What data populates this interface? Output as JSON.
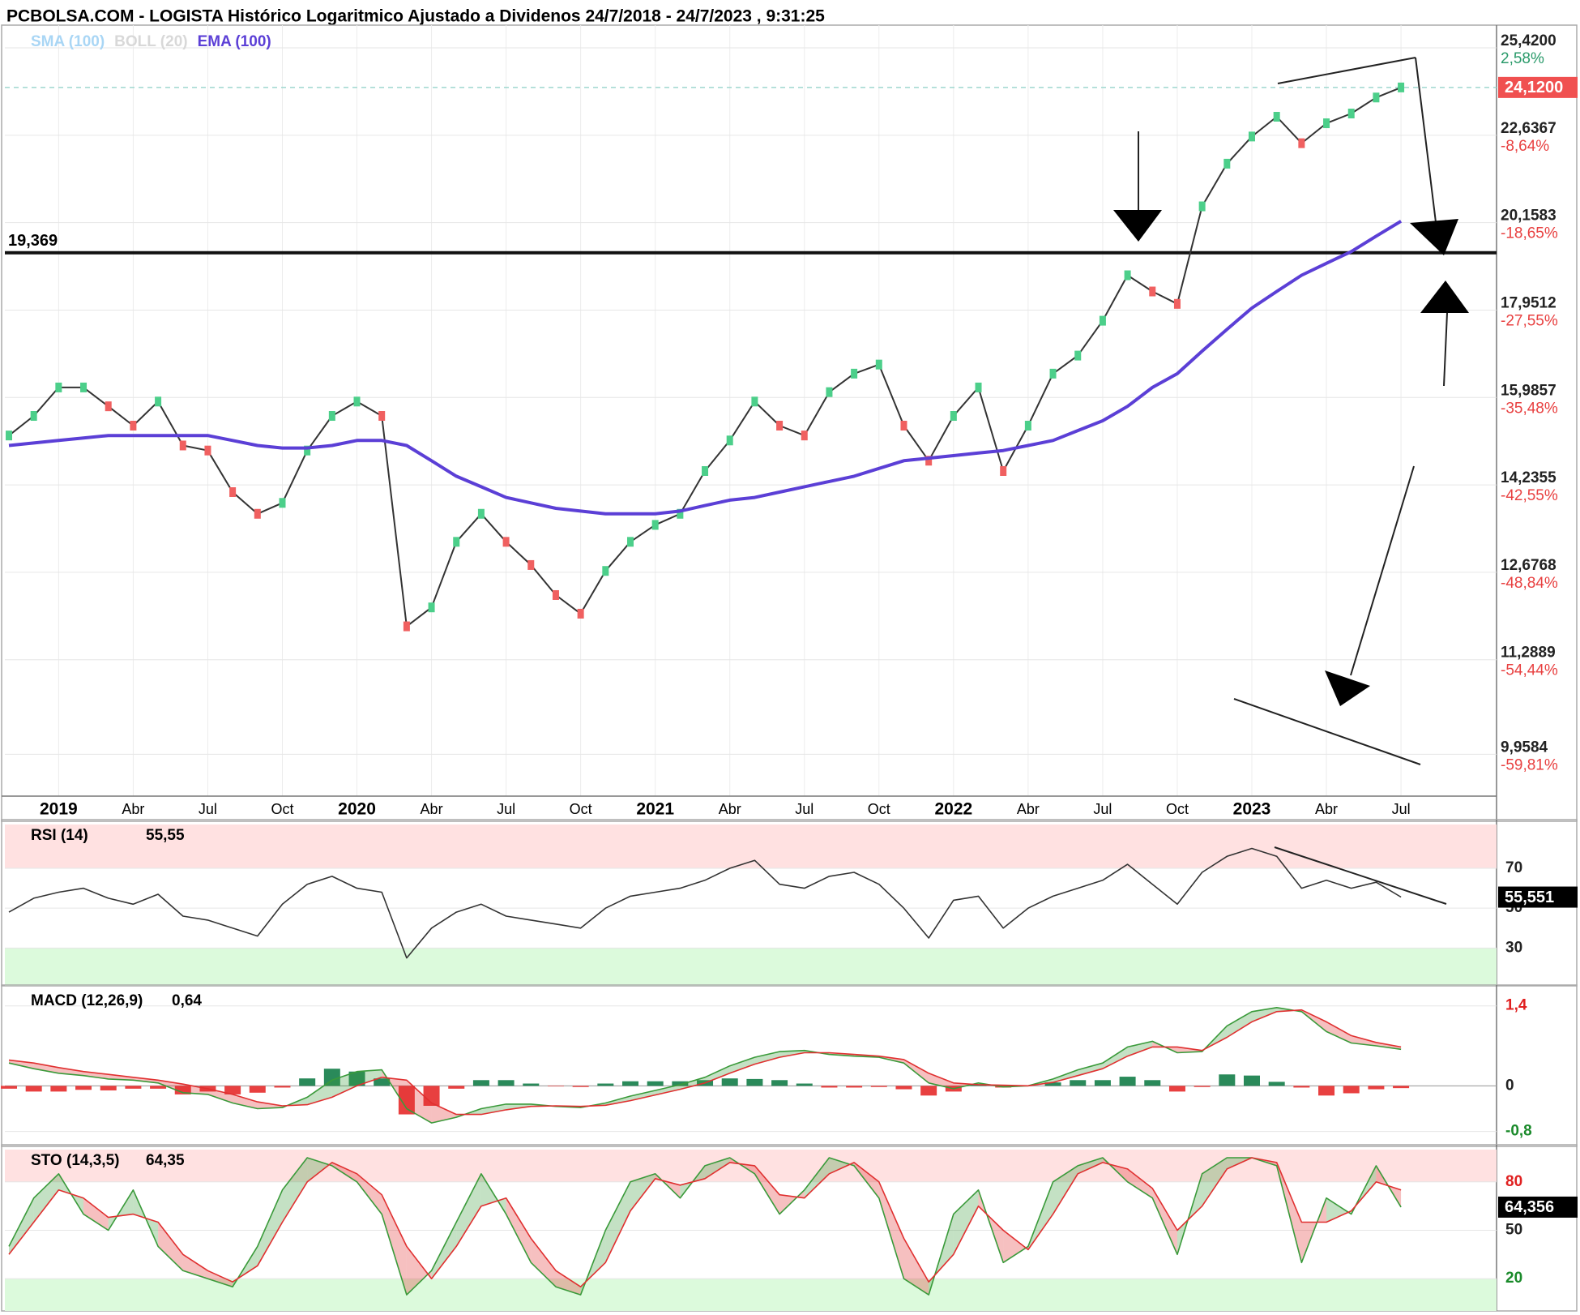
{
  "chart_data": [
    {
      "type": "line",
      "title": "PCBOLSA.COM - LOGISTA Histórico Logaritmico Ajustado a Dividenos 24/7/2018 - 24/7/2023 , 9:31:25",
      "legend": [
        {
          "name": "SMA (100)",
          "color": "#a9d6f5"
        },
        {
          "name": "BOLL (20)",
          "color": "#d8d8d8"
        }
      ],
      "series": [
        {
          "name": "EMA (100)",
          "color": "#5b3fd6",
          "values": [
            15.0,
            15.05,
            15.1,
            15.15,
            15.2,
            15.2,
            15.2,
            15.2,
            15.2,
            15.1,
            15.0,
            14.95,
            14.95,
            15.0,
            15.1,
            15.1,
            15.0,
            14.7,
            14.4,
            14.2,
            14.0,
            13.9,
            13.8,
            13.75,
            13.7,
            13.7,
            13.7,
            13.75,
            13.85,
            13.95,
            14.0,
            14.1,
            14.2,
            14.3,
            14.4,
            14.55,
            14.7,
            14.75,
            14.8,
            14.85,
            14.9,
            15.0,
            15.1,
            15.3,
            15.5,
            15.8,
            16.2,
            16.5,
            17.0,
            17.5,
            18.0,
            18.4,
            18.8,
            19.1,
            19.4,
            19.8,
            20.2
          ]
        }
      ],
      "color": "#333333",
      "values": [
        15.2,
        15.6,
        16.2,
        16.2,
        15.8,
        15.4,
        15.9,
        15.0,
        14.9,
        14.1,
        13.7,
        13.9,
        14.9,
        15.6,
        15.9,
        15.6,
        11.8,
        12.1,
        13.2,
        13.7,
        13.2,
        12.8,
        12.3,
        12.0,
        12.7,
        13.2,
        13.5,
        13.7,
        14.5,
        15.1,
        15.9,
        15.4,
        15.2,
        16.1,
        16.5,
        16.7,
        15.4,
        14.7,
        15.6,
        16.2,
        14.5,
        15.4,
        16.5,
        16.9,
        17.7,
        18.8,
        18.4,
        18.1,
        20.6,
        21.8,
        22.6,
        23.2,
        22.4,
        23.0,
        23.3,
        23.8,
        24.12
      ],
      "last_label": "24,1200",
      "categories": [
        "2018-11",
        "2018-12",
        "2019-01",
        "2019-02",
        "2019-03",
        "2019-04",
        "2019-05",
        "2019-06",
        "2019-07",
        "2019-08",
        "2019-09",
        "2019-10",
        "2019-11",
        "2019-12",
        "2020-01",
        "2020-02",
        "2020-03",
        "2020-04",
        "2020-05",
        "2020-06",
        "2020-07",
        "2020-08",
        "2020-09",
        "2020-10",
        "2020-11",
        "2020-12",
        "2021-01",
        "2021-02",
        "2021-03",
        "2021-04",
        "2021-05",
        "2021-06",
        "2021-07",
        "2021-08",
        "2021-09",
        "2021-10",
        "2021-11",
        "2021-12",
        "2022-01",
        "2022-02",
        "2022-03",
        "2022-04",
        "2022-05",
        "2022-06",
        "2022-07",
        "2022-08",
        "2022-09",
        "2022-10",
        "2022-11",
        "2022-12",
        "2023-01",
        "2023-02",
        "2023-03",
        "2023-04",
        "2023-05",
        "2023-06",
        "2023-07"
      ],
      "xticks": [
        {
          "value": "2019-01",
          "label": "2019"
        },
        {
          "value": "2019-04",
          "label": "Abr"
        },
        {
          "value": "2019-07",
          "label": "Jul"
        },
        {
          "value": "2019-10",
          "label": "Oct"
        },
        {
          "value": "2020-01",
          "label": "2020"
        },
        {
          "value": "2020-04",
          "label": "Abr"
        },
        {
          "value": "2020-07",
          "label": "Jul"
        },
        {
          "value": "2020-10",
          "label": "Oct"
        },
        {
          "value": "2021-01",
          "label": "2021"
        },
        {
          "value": "2021-04",
          "label": "Abr"
        },
        {
          "value": "2021-07",
          "label": "Jul"
        },
        {
          "value": "2021-10",
          "label": "Oct"
        },
        {
          "value": "2022-01",
          "label": "2022"
        },
        {
          "value": "2022-04",
          "label": "Abr"
        },
        {
          "value": "2022-07",
          "label": "Jul"
        },
        {
          "value": "2022-10",
          "label": "Oct"
        },
        {
          "value": "2023-01",
          "label": "2023"
        },
        {
          "value": "2023-04",
          "label": "Abr"
        },
        {
          "value": "2023-07",
          "label": "Jul"
        }
      ],
      "log_scale": true,
      "grid": true,
      "ylim": [
        9.42,
        26.03
      ],
      "yticks": [
        {
          "value": 25.42,
          "label": "25,4200"
        },
        {
          "value": 22.6367,
          "label": "22,6367"
        },
        {
          "value": 20.1583,
          "label": "20,1583"
        },
        {
          "value": 17.9512,
          "label": "17,9512"
        },
        {
          "value": 15.9857,
          "label": "15,9857"
        },
        {
          "value": 14.2355,
          "label": "14,2355"
        },
        {
          "value": 12.6768,
          "label": "12,6768"
        },
        {
          "value": 11.2889,
          "label": "11,2889"
        },
        {
          "value": 9.9584,
          "label": "9,9584"
        }
      ],
      "ytick_changes": [
        {
          "value": 2.58,
          "label": "2,58%"
        },
        {
          "value": -8.64,
          "label": "-8,64%"
        },
        {
          "value": -18.65,
          "label": "-18,65%"
        },
        {
          "value": -27.55,
          "label": "-27,55%"
        },
        {
          "value": -35.48,
          "label": "-35,48%"
        },
        {
          "value": -42.55,
          "label": "-42,55%"
        },
        {
          "value": -48.84,
          "label": "-48,84%"
        },
        {
          "value": -54.44,
          "label": "-54,44%"
        },
        {
          "value": -59.81,
          "label": "-59,81%"
        }
      ],
      "hline": {
        "value": 19.369,
        "label": "19,369"
      }
    },
    {
      "type": "line",
      "title": "RSI (14)",
      "header_value": "55,55",
      "last_label": "55,551",
      "color": "#333333",
      "values": [
        48,
        55,
        58,
        60,
        55,
        52,
        57,
        46,
        44,
        40,
        36,
        52,
        62,
        66,
        60,
        58,
        25,
        40,
        48,
        52,
        46,
        44,
        42,
        40,
        50,
        56,
        58,
        60,
        64,
        70,
        74,
        62,
        60,
        66,
        68,
        62,
        50,
        35,
        54,
        56,
        40,
        50,
        56,
        60,
        64,
        72,
        62,
        52,
        68,
        76,
        80,
        76,
        60,
        64,
        60,
        63,
        55.551
      ],
      "ylim": [
        11,
        92
      ],
      "yticks": [
        70,
        50,
        30
      ],
      "zone_colors": [
        "#ffe1e1",
        "#dcfadc"
      ]
    },
    {
      "type": "macd",
      "title": "MACD (12,26,9)",
      "header_value": "0,64",
      "macd": {
        "color": "#3a9a3a",
        "values": [
          0.4,
          0.3,
          0.22,
          0.18,
          0.12,
          0.1,
          0.05,
          -0.12,
          -0.15,
          -0.3,
          -0.4,
          -0.38,
          -0.2,
          0.1,
          0.25,
          0.28,
          -0.4,
          -0.65,
          -0.55,
          -0.4,
          -0.32,
          -0.32,
          -0.36,
          -0.38,
          -0.3,
          -0.18,
          -0.08,
          0.02,
          0.15,
          0.35,
          0.5,
          0.6,
          0.62,
          0.55,
          0.52,
          0.5,
          0.4,
          0.05,
          -0.05,
          0.05,
          -0.02,
          0.0,
          0.12,
          0.28,
          0.4,
          0.68,
          0.78,
          0.58,
          0.6,
          1.05,
          1.3,
          1.37,
          1.3,
          0.95,
          0.75,
          0.7,
          0.64
        ]
      },
      "signal": {
        "color": "#e03030",
        "values": [
          0.45,
          0.4,
          0.32,
          0.25,
          0.2,
          0.15,
          0.1,
          0.03,
          -0.05,
          -0.15,
          -0.28,
          -0.35,
          -0.33,
          -0.2,
          0.0,
          0.15,
          0.1,
          -0.3,
          -0.5,
          -0.5,
          -0.42,
          -0.36,
          -0.35,
          -0.36,
          -0.34,
          -0.26,
          -0.16,
          -0.06,
          0.05,
          0.22,
          0.38,
          0.5,
          0.58,
          0.58,
          0.55,
          0.52,
          0.46,
          0.22,
          0.05,
          0.02,
          0.01,
          0.0,
          0.06,
          0.18,
          0.3,
          0.52,
          0.68,
          0.68,
          0.62,
          0.85,
          1.12,
          1.3,
          1.33,
          1.12,
          0.88,
          0.76,
          0.68
        ]
      },
      "histogram": {
        "up_color": "#2a8a5a",
        "down_color": "#e84040",
        "values": [
          -0.05,
          -0.1,
          -0.1,
          -0.07,
          -0.08,
          -0.05,
          -0.05,
          -0.15,
          -0.1,
          -0.15,
          -0.12,
          -0.03,
          0.13,
          0.3,
          0.25,
          0.13,
          -0.5,
          -0.35,
          -0.05,
          0.1,
          0.1,
          0.04,
          -0.01,
          -0.02,
          0.04,
          0.08,
          0.08,
          0.08,
          0.1,
          0.13,
          0.12,
          0.1,
          0.04,
          -0.03,
          -0.03,
          -0.02,
          -0.06,
          -0.17,
          -0.1,
          0.03,
          -0.03,
          0.0,
          0.06,
          0.1,
          0.1,
          0.16,
          0.1,
          -0.1,
          -0.02,
          0.2,
          0.18,
          0.07,
          -0.03,
          -0.17,
          -0.13,
          -0.06,
          -0.04
        ]
      },
      "ylim": [
        -1.06,
        1.68
      ],
      "yticks": [
        {
          "value": 1.4,
          "label": "1,4"
        },
        0,
        {
          "value": -0.8,
          "label": "-0,8"
        }
      ]
    },
    {
      "type": "stochastic",
      "title": "STO (14,3,5)",
      "header_value": "64,35",
      "last_label": "64,356",
      "k": {
        "color": "#3a9a3a",
        "values": [
          40,
          70,
          85,
          60,
          50,
          75,
          40,
          25,
          20,
          15,
          40,
          75,
          95,
          90,
          80,
          60,
          10,
          25,
          55,
          85,
          60,
          30,
          15,
          10,
          50,
          80,
          85,
          70,
          90,
          95,
          85,
          60,
          75,
          95,
          90,
          70,
          20,
          10,
          60,
          75,
          30,
          40,
          80,
          90,
          95,
          80,
          70,
          35,
          85,
          95,
          95,
          90,
          30,
          70,
          60,
          90,
          64.356
        ]
      },
      "d": {
        "color": "#e03030",
        "values": [
          35,
          55,
          75,
          70,
          58,
          60,
          55,
          35,
          25,
          18,
          28,
          55,
          80,
          92,
          85,
          72,
          40,
          20,
          40,
          65,
          70,
          45,
          25,
          15,
          30,
          62,
          82,
          78,
          82,
          92,
          90,
          72,
          70,
          85,
          92,
          80,
          45,
          18,
          35,
          65,
          50,
          38,
          60,
          85,
          92,
          88,
          76,
          50,
          65,
          88,
          95,
          92,
          55,
          55,
          62,
          80,
          75
        ]
      },
      "ylim": [
        0,
        100
      ],
      "yticks": [
        80,
        50,
        20
      ],
      "zone_colors": [
        "#ffe1e1",
        "#dcfadc"
      ]
    }
  ]
}
